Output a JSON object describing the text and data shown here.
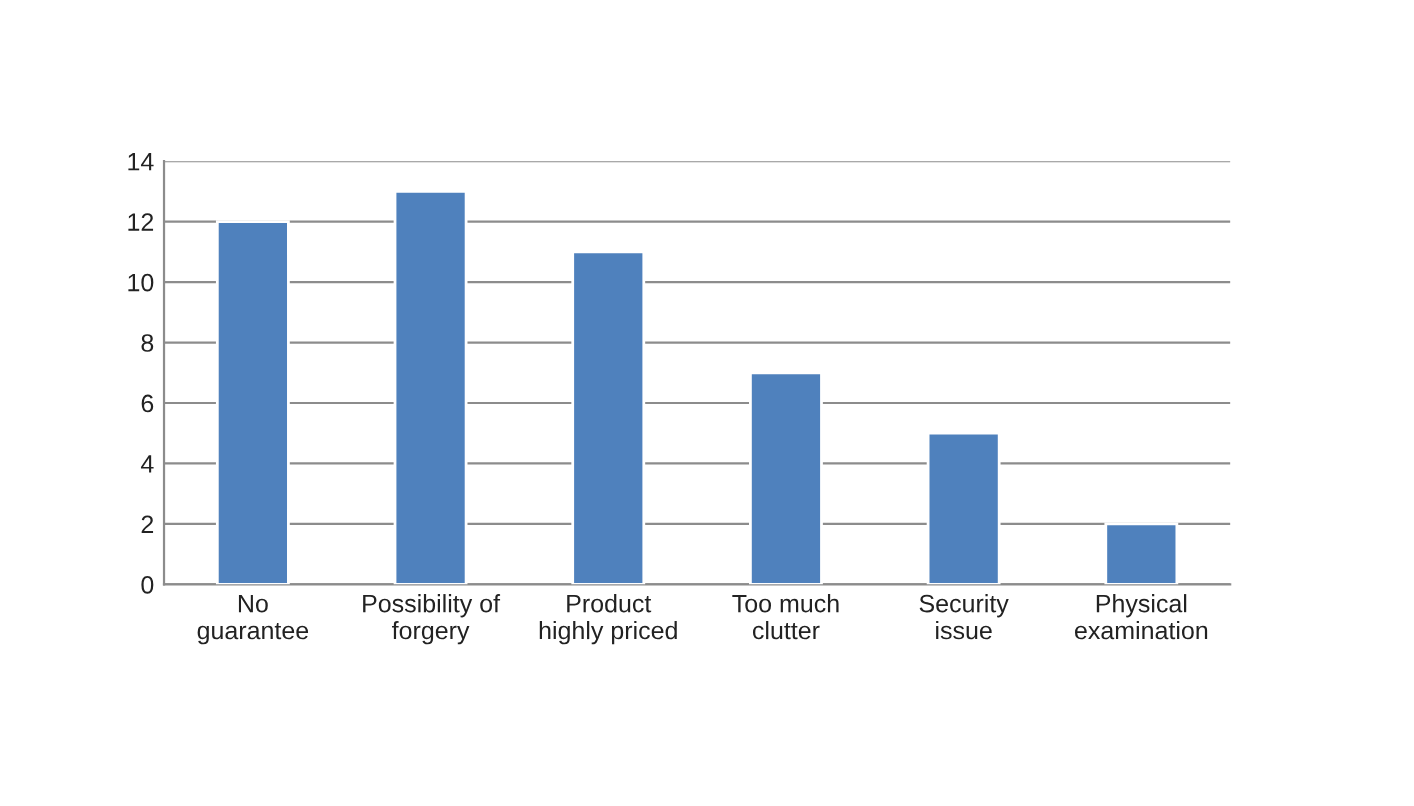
{
  "chart_data": {
    "type": "bar",
    "categories": [
      "No\nguarantee",
      "Possibility of\nforgery",
      "Product\nhighly priced",
      "Too much\nclutter",
      "Security\nissue",
      "Physical\nexamination"
    ],
    "values": [
      12,
      13,
      11,
      7,
      5,
      2
    ],
    "color": "#4f81bd",
    "ylim": [
      0,
      14
    ],
    "yticks": [
      0,
      2,
      4,
      6,
      8,
      10,
      12,
      14
    ],
    "grid": "y",
    "legend": false
  }
}
